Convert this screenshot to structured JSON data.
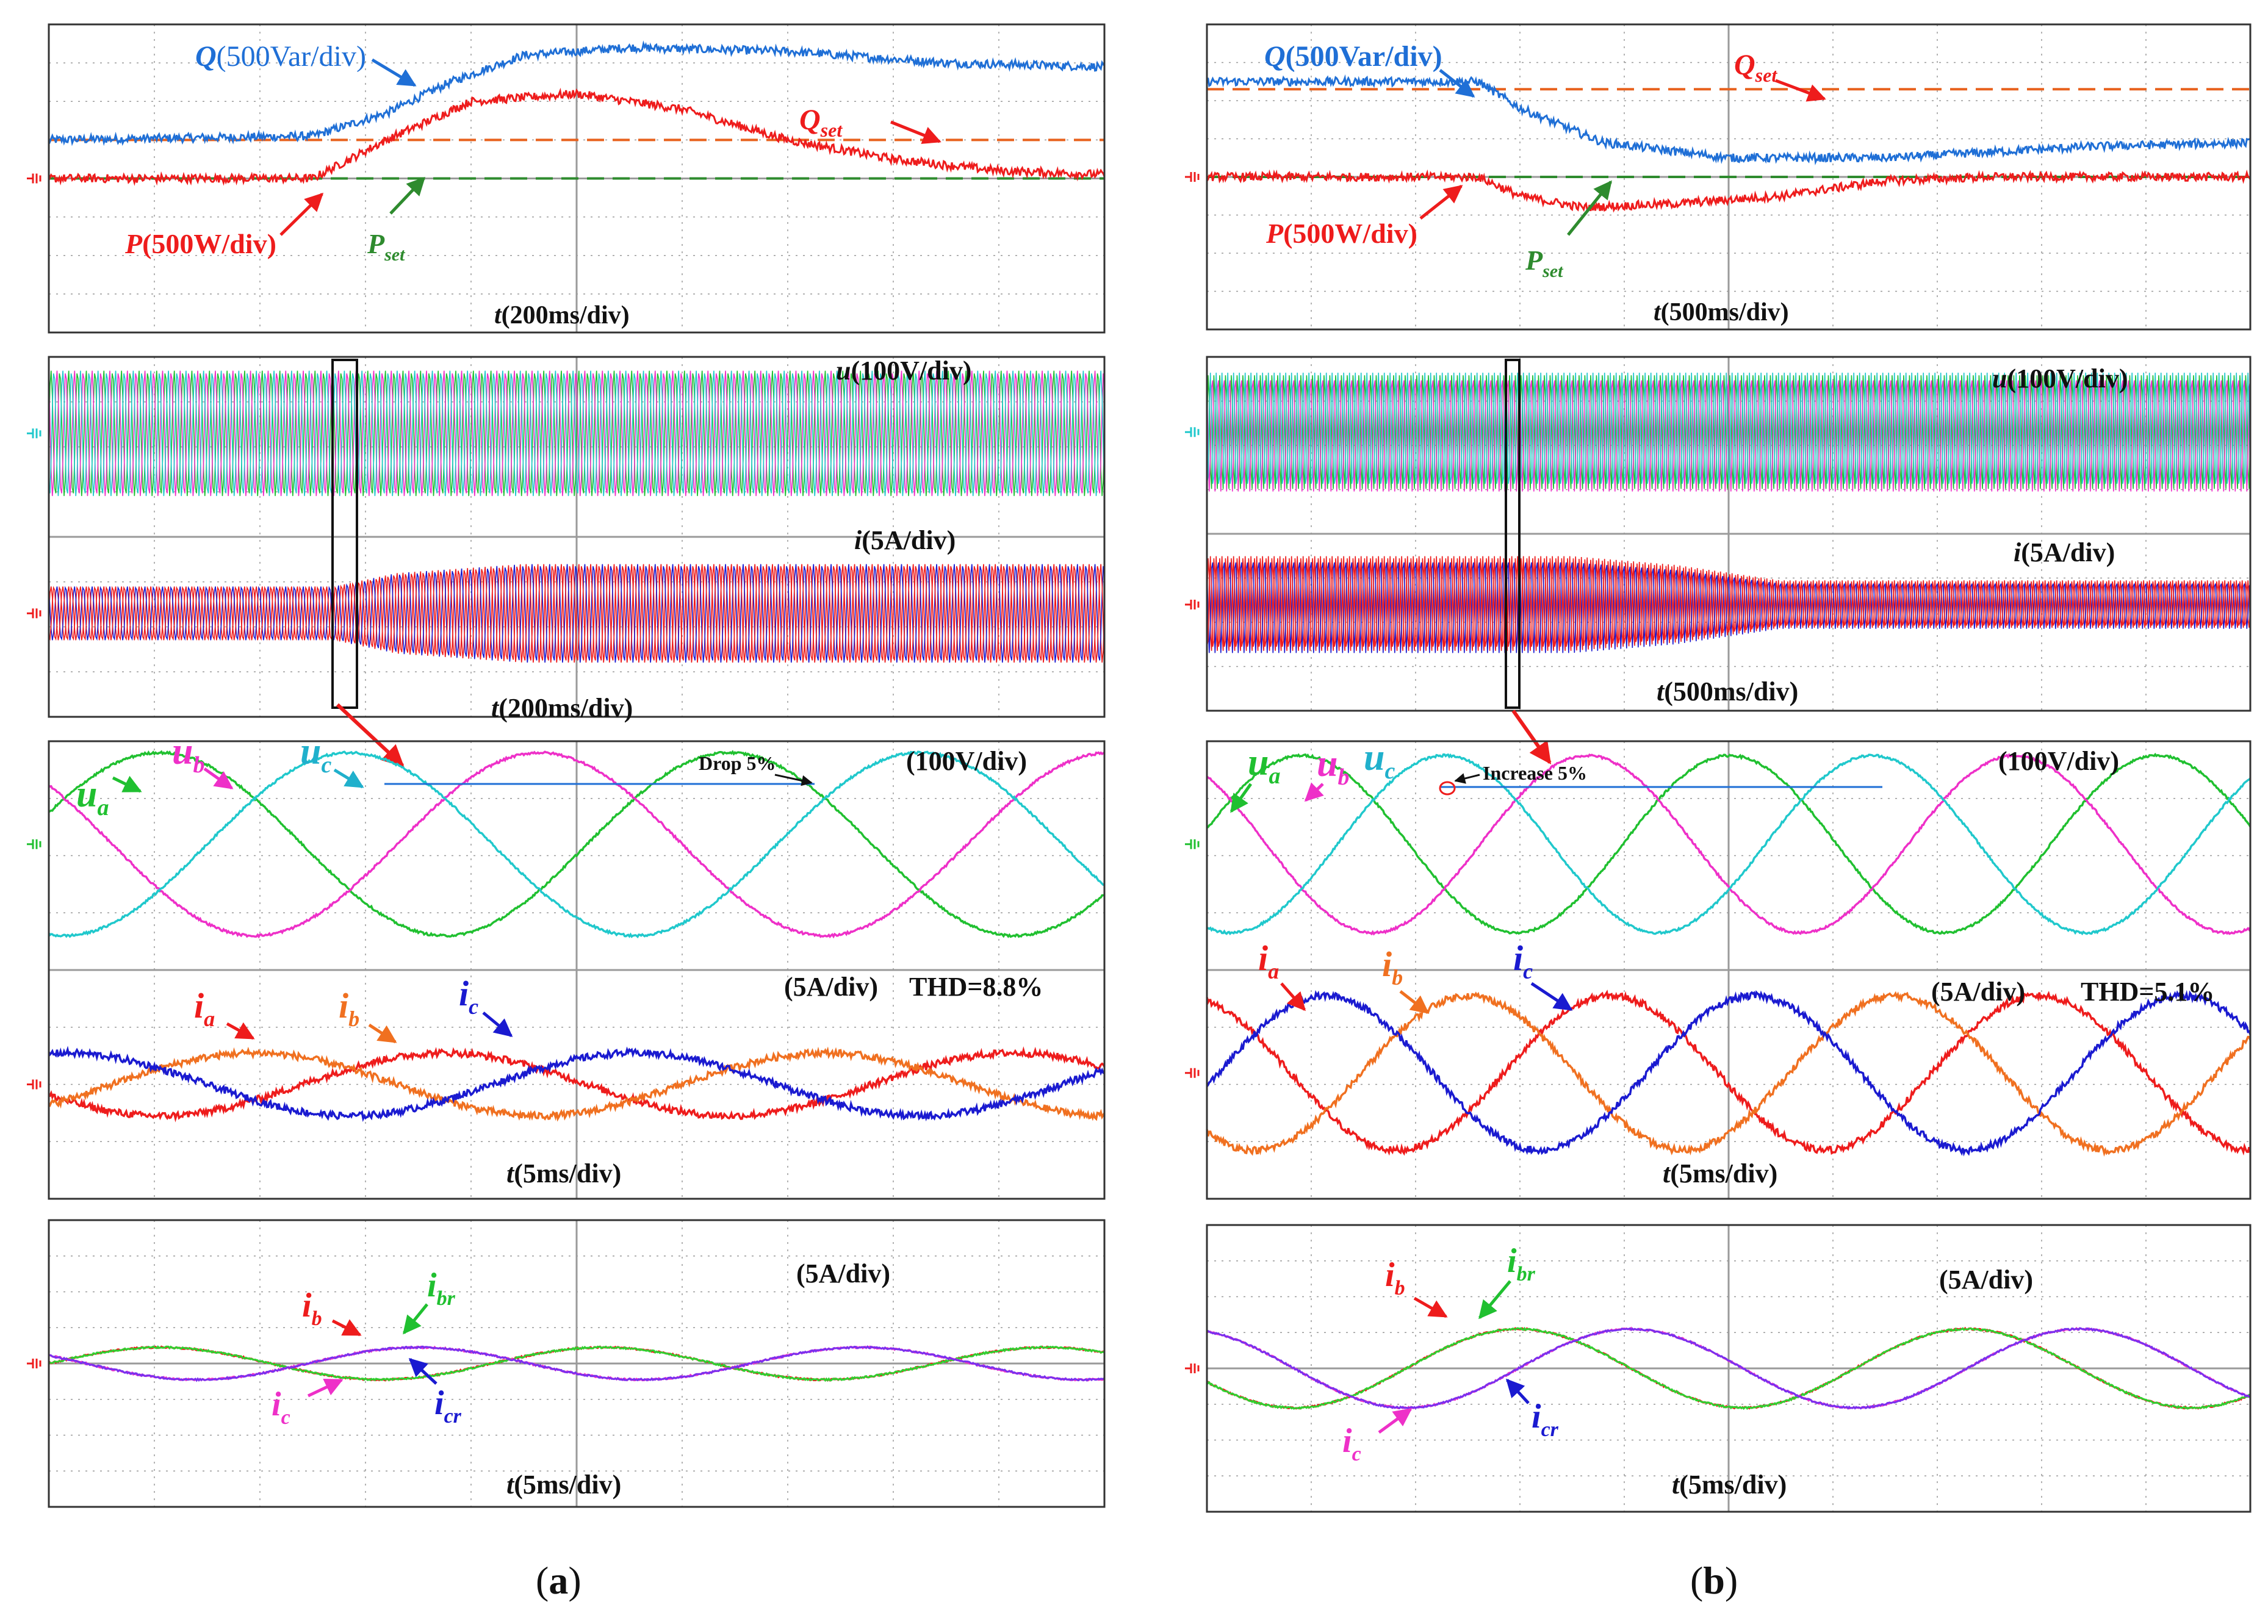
{
  "figure": {
    "caption_a": "(a)",
    "caption_b": "(b)",
    "cap_a_letter": "a",
    "cap_b_letter": "b",
    "paren_open": "(",
    "paren_close": ")"
  },
  "colors": {
    "grid": "#9a9a9a",
    "frame": "#333333",
    "Q": "#1f6fd6",
    "P": "#ee1c1c",
    "Qset": "#e8621e",
    "Pset": "#2e8b2e",
    "u_green": "#20c030",
    "u_magenta": "#ee30c8",
    "u_cyan": "#20c8cc",
    "i_red": "#ee1c1c",
    "i_orange": "#f07020",
    "i_blue": "#1a1ad0",
    "ib_green": "#30d030",
    "ic_purple": "#7a30ee"
  },
  "chart_data": [
    {
      "id": "a1",
      "type": "line",
      "title": "",
      "xlabel": "t(200ms/div)",
      "labels": {
        "Q": "Q",
        "Q_unit": "(500Var/div)",
        "P": "P",
        "P_unit": "(500W/div)",
        "Qset": "Q",
        "Qset_sub": "set",
        "Pset": "P",
        "Pset_sub": "set",
        "t": "t",
        "t_unit": "(200ms/div)"
      },
      "divisions": {
        "x": 10,
        "y": 8
      },
      "series": [
        {
          "name": "Q",
          "unit_per_div": "500Var",
          "x": [
            0,
            2.5,
            3.2,
            3.8,
            4.5,
            5.5,
            7,
            8.5,
            10
          ],
          "y": [
            5.0,
            5.1,
            5.7,
            6.5,
            7.2,
            7.4,
            7.3,
            7.0,
            6.9
          ]
        },
        {
          "name": "P",
          "unit_per_div": "500W",
          "x": [
            0,
            2.5,
            3.2,
            4.0,
            5.0,
            6.0,
            7.0,
            8.0,
            9.0,
            10
          ],
          "y": [
            4.0,
            4.0,
            5.0,
            6.0,
            6.2,
            5.8,
            5.0,
            4.5,
            4.2,
            4.1
          ]
        },
        {
          "name": "Qset",
          "x": [
            0,
            10
          ],
          "y": [
            5.0,
            5.0
          ]
        },
        {
          "name": "Pset",
          "x": [
            0,
            10
          ],
          "y": [
            4.0,
            4.0
          ]
        }
      ]
    },
    {
      "id": "a2",
      "type": "line",
      "labels": {
        "u": "u",
        "u_unit": "(100V/div)",
        "i": "i",
        "i_unit": "(5A/div)",
        "t": "t",
        "t_unit": "(200ms/div)"
      },
      "divisions": {
        "x": 10,
        "y": 8
      },
      "envelopes": [
        {
          "name": "u",
          "center_div": 6.3,
          "x": [
            0,
            10
          ],
          "half_amplitude_div": [
            1.4,
            1.4
          ]
        },
        {
          "name": "i",
          "center_div": 2.3,
          "x": [
            0,
            2.7,
            3.3,
            4.5,
            10
          ],
          "half_amplitude_div": [
            0.6,
            0.6,
            0.9,
            1.1,
            1.1
          ]
        }
      ]
    },
    {
      "id": "a3",
      "type": "line",
      "labels": {
        "ua": "u",
        "ua_sub": "a",
        "ub": "u",
        "ub_sub": "b",
        "uc": "u",
        "uc_sub": "c",
        "volt_unit": "(100V/div)",
        "drop": "Drop 5%",
        "amp_unit": "(5A/div)",
        "thd": "THD=8.8%",
        "ia": "i",
        "ia_sub": "a",
        "ib": "i",
        "ib_sub": "b",
        "ic": "i",
        "ic_sub": "c",
        "t": "t",
        "t_unit": "(5ms/div)"
      },
      "divisions": {
        "x": 10,
        "y": 8
      },
      "voltage": {
        "center_div": 6.2,
        "amplitude_div": 1.6,
        "period_div": 5.4
      },
      "current": {
        "center_div": 2.0,
        "amplitude_div": 0.55,
        "period_div": 5.4
      },
      "series": [
        {
          "name": "u_a",
          "phase_deg": 20
        },
        {
          "name": "u_b",
          "phase_deg": 140
        },
        {
          "name": "u_c",
          "phase_deg": 260
        },
        {
          "name": "i_a",
          "phase_deg": 200
        },
        {
          "name": "i_b",
          "phase_deg": 320
        },
        {
          "name": "i_c",
          "phase_deg": 80
        }
      ]
    },
    {
      "id": "a4",
      "type": "line",
      "labels": {
        "unit": "(5A/div)",
        "ib": "i",
        "ib_sub": "b",
        "ibr": "i",
        "ibr_sub": "br",
        "ic": "i",
        "ic_sub": "c",
        "icr": "i",
        "icr_sub": "cr",
        "t": "t",
        "t_unit": "(5ms/div)"
      },
      "divisions": {
        "x": 10,
        "y": 8
      },
      "center_div": 4.0,
      "amplitude_div": 0.45,
      "period_div": 4.2,
      "series": [
        {
          "name": "i_b",
          "phase_deg": 0
        },
        {
          "name": "i_br",
          "phase_deg": 0
        },
        {
          "name": "i_c",
          "phase_deg": 150
        },
        {
          "name": "i_cr",
          "phase_deg": 150
        }
      ]
    },
    {
      "id": "b1",
      "type": "line",
      "labels": {
        "Q": "Q",
        "Q_unit": "(500Var/div)",
        "P": "P",
        "P_unit": "(500W/div)",
        "Qset": "Q",
        "Qset_sub": "set",
        "Pset": "P",
        "Pset_sub": "set",
        "t": "t",
        "t_unit": "(500ms/div)"
      },
      "divisions": {
        "x": 10,
        "y": 8
      },
      "series": [
        {
          "name": "Q",
          "unit_per_div": "500Var",
          "x": [
            0,
            2.6,
            3.0,
            3.8,
            5.0,
            6.5,
            8.5,
            10
          ],
          "y": [
            6.5,
            6.5,
            5.8,
            4.9,
            4.5,
            4.5,
            4.8,
            4.9
          ]
        },
        {
          "name": "P",
          "unit_per_div": "500W",
          "x": [
            0,
            2.6,
            3.0,
            3.6,
            4.5,
            5.5,
            6.5,
            7.5,
            10
          ],
          "y": [
            4.0,
            4.0,
            3.5,
            3.2,
            3.3,
            3.5,
            3.9,
            4.0,
            4.0
          ]
        },
        {
          "name": "Qset",
          "x": [
            0,
            10
          ],
          "y": [
            6.3,
            6.3
          ]
        },
        {
          "name": "Pset",
          "x": [
            0,
            10
          ],
          "y": [
            4.0,
            4.0
          ]
        }
      ]
    },
    {
      "id": "b2",
      "type": "line",
      "labels": {
        "u": "u",
        "u_unit": "(100V/div)",
        "i": "i",
        "i_unit": "(5A/div)",
        "t": "t",
        "t_unit": "(500ms/div)"
      },
      "divisions": {
        "x": 10,
        "y": 8
      },
      "envelopes": [
        {
          "name": "u",
          "center_div": 6.3,
          "x": [
            0,
            10
          ],
          "half_amplitude_div": [
            1.35,
            1.35
          ]
        },
        {
          "name": "i",
          "center_div": 2.4,
          "x": [
            0,
            3.5,
            4.5,
            5.5,
            10
          ],
          "half_amplitude_div": [
            1.1,
            1.1,
            0.9,
            0.55,
            0.55
          ]
        }
      ]
    },
    {
      "id": "b3",
      "type": "line",
      "labels": {
        "ua": "u",
        "ua_sub": "a",
        "ub": "u",
        "ub_sub": "b",
        "uc": "u",
        "uc_sub": "c",
        "volt_unit": "(100V/div)",
        "inc": "Increase 5%",
        "amp_unit": "(5A/div)",
        "thd": "THD=5.1%",
        "ia": "i",
        "ia_sub": "a",
        "ib": "i",
        "ib_sub": "b",
        "ic": "i",
        "ic_sub": "c",
        "t": "t",
        "t_unit": "(5ms/div)"
      },
      "divisions": {
        "x": 10,
        "y": 8
      },
      "voltage": {
        "center_div": 6.2,
        "amplitude_div": 1.55,
        "period_div": 4.1
      },
      "current": {
        "center_div": 2.2,
        "amplitude_div": 1.35,
        "period_div": 4.1
      },
      "series": [
        {
          "name": "u_a",
          "phase_deg": 10
        },
        {
          "name": "u_b",
          "phase_deg": 130
        },
        {
          "name": "u_c",
          "phase_deg": 250
        },
        {
          "name": "i_a",
          "phase_deg": 110
        },
        {
          "name": "i_b",
          "phase_deg": 230
        },
        {
          "name": "i_c",
          "phase_deg": 350
        }
      ]
    },
    {
      "id": "b4",
      "type": "line",
      "labels": {
        "unit": "(5A/div)",
        "ib": "i",
        "ib_sub": "b",
        "ibr": "i",
        "ibr_sub": "br",
        "ic": "i",
        "ic_sub": "c",
        "icr": "i",
        "icr_sub": "cr",
        "t": "t",
        "t_unit": "(5ms/div)"
      },
      "divisions": {
        "x": 10,
        "y": 8
      },
      "center_div": 4.0,
      "amplitude_div": 1.1,
      "period_div": 4.3,
      "series": [
        {
          "name": "i_b",
          "phase_deg": 200
        },
        {
          "name": "i_br",
          "phase_deg": 200
        },
        {
          "name": "i_c",
          "phase_deg": 110
        },
        {
          "name": "i_cr",
          "phase_deg": 110
        }
      ]
    }
  ]
}
